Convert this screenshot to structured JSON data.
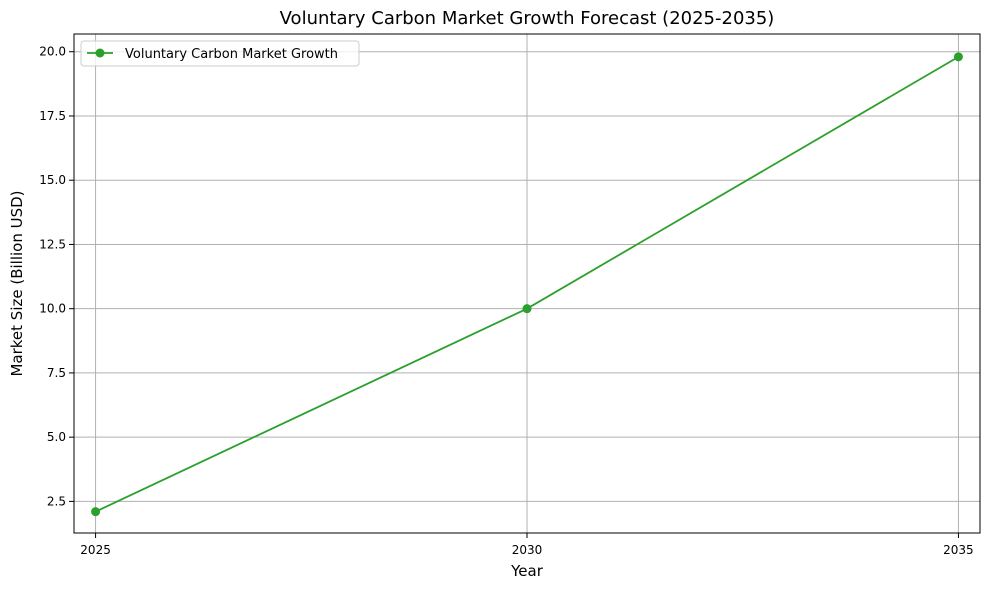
{
  "chart_data": {
    "type": "line",
    "title": "Voluntary Carbon Market Growth Forecast (2025-2035)",
    "xlabel": "Year",
    "ylabel": "Market Size (Billion USD)",
    "x": [
      2025,
      2030,
      2035
    ],
    "xticks": [
      "2025",
      "2030",
      "2035"
    ],
    "yticks": [
      "2.5",
      "5.0",
      "7.5",
      "10.0",
      "12.5",
      "15.0",
      "17.5",
      "20.0"
    ],
    "ytick_values": [
      2.5,
      5.0,
      7.5,
      10.0,
      12.5,
      15.0,
      17.5,
      20.0
    ],
    "xlim": [
      2024.75,
      2035.25
    ],
    "ylim": [
      1.27,
      20.69
    ],
    "grid": true,
    "legend_position": "top-left",
    "series": [
      {
        "name": "Voluntary Carbon Market Growth",
        "color": "#2ca02c",
        "marker": "circle",
        "values": [
          2.1,
          10.0,
          19.8
        ]
      }
    ]
  }
}
